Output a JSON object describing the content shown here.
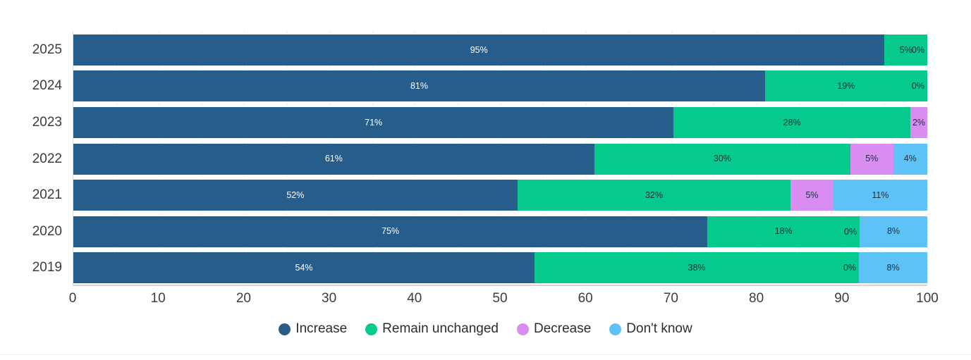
{
  "chart_data": {
    "type": "bar",
    "orientation": "horizontal",
    "stacked": true,
    "title": "",
    "xlabel": "",
    "ylabel": "",
    "xlim": [
      0,
      100
    ],
    "x_ticks": [
      "0",
      "10",
      "20",
      "30",
      "40",
      "50",
      "60",
      "70",
      "80",
      "90",
      "100"
    ],
    "grid": "vertical-dashed-minor-every-5",
    "legend_position": "bottom-center",
    "categories": [
      "2025",
      "2024",
      "2023",
      "2022",
      "2021",
      "2020",
      "2019"
    ],
    "series": [
      {
        "name": "Increase",
        "color": "#275d8a",
        "values": [
          95,
          81,
          71,
          61,
          52,
          75,
          54
        ]
      },
      {
        "name": "Remain unchanged",
        "color": "#05c98d",
        "values": [
          5,
          19,
          28,
          30,
          32,
          18,
          38
        ]
      },
      {
        "name": "Decrease",
        "color": "#d98df1",
        "values": [
          0,
          0,
          2,
          5,
          5,
          0,
          0
        ]
      },
      {
        "name": "Don't know",
        "color": "#5dc3f7",
        "values": [
          null,
          null,
          null,
          4,
          11,
          8,
          8
        ]
      }
    ],
    "bar_labels": [
      [
        "95%",
        "5%",
        "0%",
        null
      ],
      [
        "81%",
        "19%",
        "0%",
        null
      ],
      [
        "71%",
        "28%",
        "2%",
        null
      ],
      [
        "61%",
        "30%",
        "5%",
        "4%"
      ],
      [
        "52%",
        "32%",
        "5%",
        "11%"
      ],
      [
        "75%",
        "18%",
        "0%",
        "8%"
      ],
      [
        "54%",
        "38%",
        "0%",
        "8%"
      ]
    ],
    "label_text_color_on_dark": "#ffffff",
    "label_text_color_on_light": "#1e2f40"
  }
}
